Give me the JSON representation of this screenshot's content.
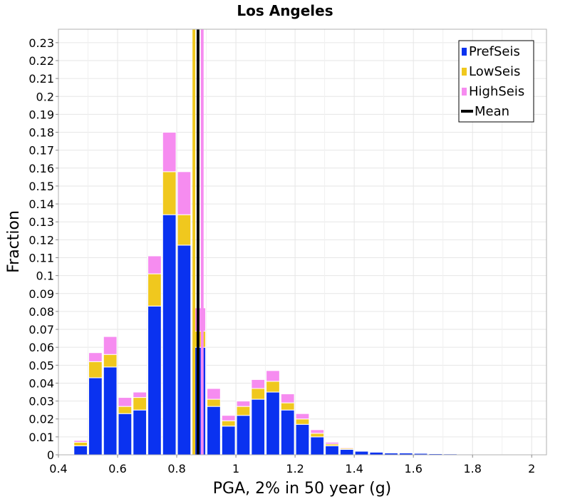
{
  "chart_data": {
    "type": "bar",
    "title": "Los Angeles",
    "xlabel": "PGA, 2% in 50 year (g)",
    "ylabel": "Fraction",
    "xlim": [
      0.4,
      2.05
    ],
    "ylim": [
      0,
      0.2375
    ],
    "xticks": [
      0.4,
      0.6,
      0.8,
      1,
      1.2,
      1.4,
      1.6,
      1.8,
      2
    ],
    "yticks": [
      0,
      0.01,
      0.02,
      0.03,
      0.04,
      0.05,
      0.06,
      0.07,
      0.08,
      0.09,
      0.1,
      0.11,
      0.12,
      0.13,
      0.14,
      0.15,
      0.16,
      0.17,
      0.18,
      0.19,
      0.2,
      0.21,
      0.22,
      0.23
    ],
    "grid": true,
    "legend_position": "top-right",
    "stacked": true,
    "bin_width": 0.05,
    "x": [
      0.475,
      0.525,
      0.575,
      0.625,
      0.675,
      0.725,
      0.775,
      0.825,
      0.875,
      0.925,
      0.975,
      1.025,
      1.075,
      1.125,
      1.175,
      1.225,
      1.275,
      1.325,
      1.375,
      1.425,
      1.475,
      1.525,
      1.575,
      1.625,
      1.675,
      1.725,
      1.775,
      1.825,
      1.875,
      1.925,
      1.975,
      2.025
    ],
    "series": [
      {
        "name": "PrefSeis",
        "color": "#0a32f0",
        "values": [
          0.005,
          0.043,
          0.049,
          0.023,
          0.025,
          0.083,
          0.134,
          0.117,
          0.06,
          0.027,
          0.016,
          0.022,
          0.031,
          0.035,
          0.025,
          0.017,
          0.01,
          0.005,
          0.003,
          0.002,
          0.0015,
          0.001,
          0.001,
          0.0008,
          0.0006,
          0.0005,
          0.0004,
          0.0003,
          0.0003,
          0.0002,
          0.0002,
          0.0001
        ]
      },
      {
        "name": "LowSeis",
        "color": "#f0c81e",
        "values": [
          0.002,
          0.009,
          0.007,
          0.004,
          0.007,
          0.018,
          0.024,
          0.017,
          0.009,
          0.004,
          0.003,
          0.005,
          0.006,
          0.006,
          0.004,
          0.003,
          0.002,
          0.001,
          0.0006,
          0.0004,
          0.0002,
          0.0002,
          0.0001,
          0.0001,
          0,
          0,
          0,
          0,
          0,
          0,
          0,
          0
        ]
      },
      {
        "name": "HighSeis",
        "color": "#f68cf0",
        "values": [
          0.001,
          0.005,
          0.01,
          0.005,
          0.003,
          0.01,
          0.022,
          0.024,
          0.013,
          0.006,
          0.003,
          0.003,
          0.005,
          0.006,
          0.005,
          0.003,
          0.002,
          0.001,
          0.0005,
          0.0003,
          0.0002,
          0.0002,
          0.0001,
          0.0001,
          0,
          0,
          0,
          0,
          0,
          0,
          0,
          0
        ]
      }
    ],
    "mean_lines": [
      {
        "name": "LowSeis",
        "x": 0.858,
        "color": "#f0c81e"
      },
      {
        "name": "HighSeis",
        "x": 0.886,
        "color": "#f68cf0"
      },
      {
        "name": "Mean",
        "x": 0.872,
        "color": "#000000"
      }
    ],
    "legend": [
      {
        "label": "PrefSeis",
        "color": "#0a32f0",
        "kind": "box"
      },
      {
        "label": "LowSeis",
        "color": "#f0c81e",
        "kind": "box"
      },
      {
        "label": "HighSeis",
        "color": "#f68cf0",
        "kind": "box"
      },
      {
        "label": "Mean",
        "color": "#000000",
        "kind": "line"
      }
    ]
  }
}
